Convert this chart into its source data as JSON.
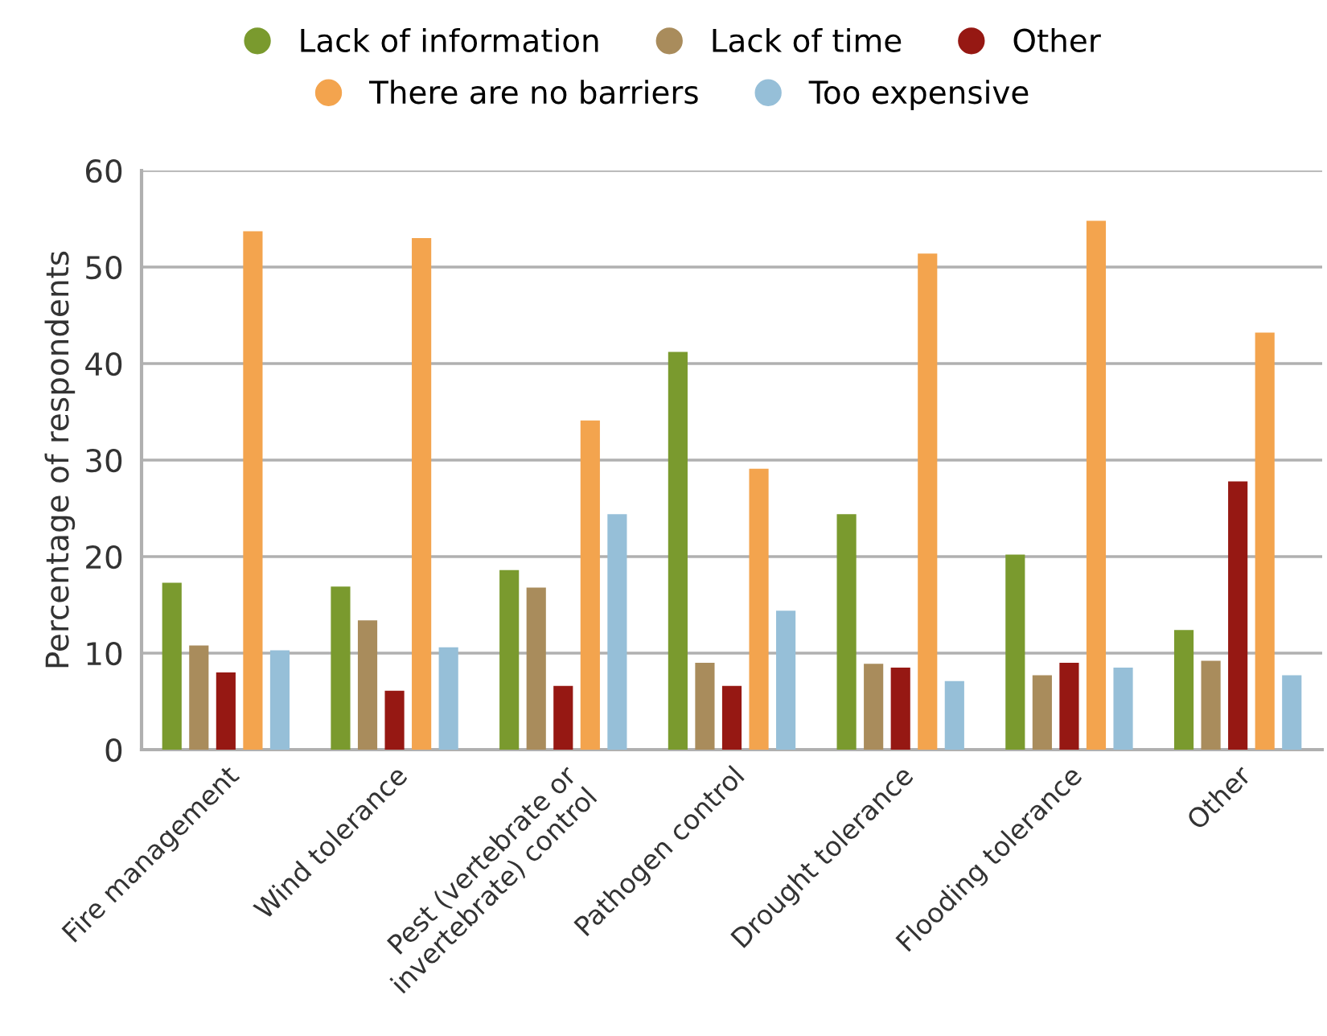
{
  "chart_data": {
    "type": "bar",
    "ylabel": "Percentage of respondents",
    "categories": [
      "Fire management",
      "Wind tolerance",
      "Pest (vertebrate or\ninvertebrate) control",
      "Pathogen control",
      "Drought tolerance",
      "Flooding tolerance",
      "Other"
    ],
    "series": [
      {
        "name": "Lack of information",
        "color": "#7a9a2e",
        "values": [
          17.3,
          16.9,
          18.6,
          41.2,
          24.4,
          20.2,
          12.4
        ]
      },
      {
        "name": "Lack of time",
        "color": "#a98c5c",
        "values": [
          10.8,
          13.4,
          16.8,
          9.0,
          8.9,
          7.7,
          9.2
        ]
      },
      {
        "name": "Other",
        "color": "#961813",
        "values": [
          8.0,
          6.1,
          6.6,
          6.6,
          8.5,
          9.0,
          27.8
        ]
      },
      {
        "name": "There are no barriers",
        "color": "#f3a44e",
        "values": [
          53.7,
          53.0,
          34.1,
          29.1,
          51.4,
          54.8,
          43.2
        ]
      },
      {
        "name": "Too expensive",
        "color": "#96bfd8",
        "values": [
          10.3,
          10.6,
          24.4,
          14.4,
          7.1,
          8.5,
          7.7
        ]
      }
    ],
    "ylim": [
      0,
      60
    ],
    "yticks": [
      0,
      10,
      20,
      30,
      40,
      50,
      60
    ],
    "grid": "y",
    "legend": "top"
  }
}
